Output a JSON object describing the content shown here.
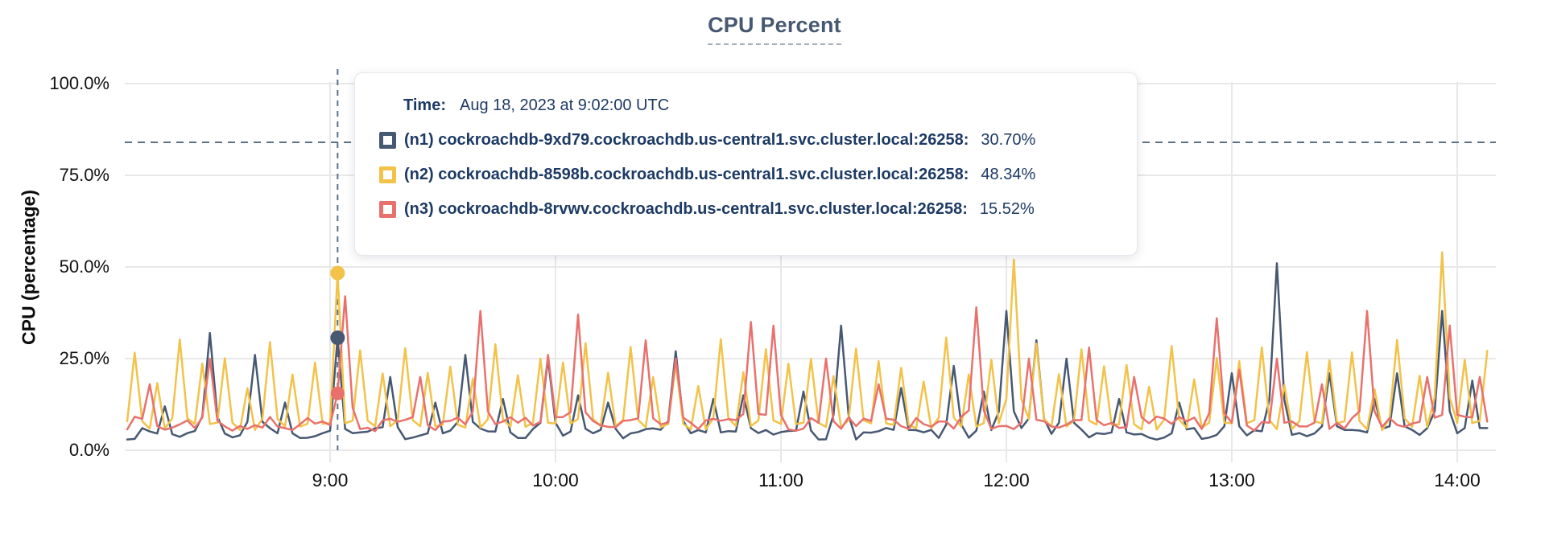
{
  "title": "CPU Percent",
  "y_axis": {
    "label": "CPU (percentage)",
    "ticks": [
      {
        "label": "100.0%",
        "value": 100
      },
      {
        "label": "75.0%",
        "value": 75
      },
      {
        "label": "50.0%",
        "value": 50
      },
      {
        "label": "25.0%",
        "value": 25
      },
      {
        "label": "0.0%",
        "value": 0
      }
    ]
  },
  "x_axis": {
    "ticks": [
      {
        "label": "9:00",
        "minute": 60
      },
      {
        "label": "10:00",
        "minute": 120
      },
      {
        "label": "11:00",
        "minute": 180
      },
      {
        "label": "12:00",
        "minute": 240
      },
      {
        "label": "13:00",
        "minute": 300
      },
      {
        "label": "14:00",
        "minute": 360
      }
    ]
  },
  "tooltip": {
    "time_label": "Time:",
    "time_value": "Aug 18, 2023 at 9:02:00 UTC",
    "rows": [
      {
        "label": "(n1) cockroachdb-9xd79.cockroachdb.us-central1.svc.cluster.local:26258:",
        "value": "30.70%",
        "color": "#475872"
      },
      {
        "label": "(n2) cockroachdb-8598b.cockroachdb.us-central1.svc.cluster.local:26258:",
        "value": "48.34%",
        "color": "#F2C249"
      },
      {
        "label": "(n3) cockroachdb-8rvwv.cockroachdb.us-central1.svc.cluster.local:26258:",
        "value": "15.52%",
        "color": "#E8716D"
      }
    ]
  },
  "chart_data": {
    "type": "line",
    "title": "CPU Percent",
    "xlabel": "",
    "ylabel": "CPU (percentage)",
    "ylim": [
      0,
      100
    ],
    "grid": true,
    "x_start_minute_from_8am": 6,
    "x_end_minute_from_8am": 368,
    "sample_step_minutes": 2,
    "x_tick_labels": [
      "9:00",
      "10:00",
      "11:00",
      "12:00",
      "13:00",
      "14:00"
    ],
    "threshold_percent": 84,
    "hover": {
      "minute": 62,
      "time": "Aug 18, 2023 at 9:02:00 UTC",
      "values": [
        30.7,
        48.34,
        15.52
      ]
    },
    "noise_seed": 7,
    "series": [
      {
        "id": "n1",
        "name": "cockroachdb-9xd79.cockroachdb.us-central1.svc.cluster.local:26258",
        "color": "#475872",
        "baseline": 4.5,
        "jitter": 1.6,
        "hover_value": 30.7,
        "spikes": [
          [
            16,
            12
          ],
          [
            28,
            32
          ],
          [
            40,
            26
          ],
          [
            48,
            13
          ],
          [
            76,
            20
          ],
          [
            88,
            13
          ],
          [
            96,
            26
          ],
          [
            106,
            14
          ],
          [
            118,
            25
          ],
          [
            126,
            15
          ],
          [
            134,
            13
          ],
          [
            152,
            27
          ],
          [
            162,
            14
          ],
          [
            170,
            15
          ],
          [
            186,
            16
          ],
          [
            196,
            34
          ],
          [
            212,
            17
          ],
          [
            226,
            23
          ],
          [
            234,
            16
          ],
          [
            240,
            38
          ],
          [
            248,
            30
          ],
          [
            256,
            25
          ],
          [
            270,
            14
          ],
          [
            286,
            13
          ],
          [
            300,
            21
          ],
          [
            312,
            51
          ],
          [
            326,
            21
          ],
          [
            338,
            14
          ],
          [
            344,
            21
          ],
          [
            356,
            38
          ],
          [
            364,
            19
          ]
        ],
        "exact": {
          "62": 30.7
        }
      },
      {
        "id": "n2",
        "name": "cockroachdb-8598b.cockroachdb.us-central1.svc.cluster.local:26258",
        "color": "#F2C249",
        "baseline": 4.6,
        "jitter": 1.4,
        "hover_value": 48.34,
        "spike_period": {
          "start": 8,
          "interval": 6,
          "heights": [
            27,
            19,
            29,
            22,
            25,
            18,
            30,
            21,
            26,
            23
          ]
        },
        "spikes": [
          [
            242,
            52
          ],
          [
            356,
            54
          ]
        ],
        "exact": {
          "62": 48.34
        }
      },
      {
        "id": "n3",
        "name": "cockroachdb-8rvwv.cockroachdb.us-central1.svc.cluster.local:26258",
        "color": "#E8716D",
        "baseline": 7.2,
        "jitter": 2.0,
        "hover_value": 15.52,
        "spikes": [
          [
            12,
            18
          ],
          [
            28,
            25
          ],
          [
            64,
            42
          ],
          [
            84,
            20
          ],
          [
            100,
            38
          ],
          [
            118,
            26
          ],
          [
            126,
            37
          ],
          [
            144,
            30
          ],
          [
            152,
            25
          ],
          [
            172,
            35
          ],
          [
            178,
            34
          ],
          [
            192,
            25
          ],
          [
            206,
            18
          ],
          [
            232,
            39
          ],
          [
            246,
            25
          ],
          [
            262,
            28
          ],
          [
            274,
            20
          ],
          [
            296,
            36
          ],
          [
            302,
            22
          ],
          [
            312,
            25
          ],
          [
            324,
            18
          ],
          [
            336,
            38
          ],
          [
            352,
            20
          ],
          [
            358,
            34
          ],
          [
            366,
            20
          ]
        ],
        "exact": {
          "62": 15.52
        }
      }
    ],
    "colors": {
      "grid": "#e8e8e8",
      "dashed_guides": "#5a7186",
      "axis_text": "#111111",
      "title": "#475872",
      "tooltip_text": "#1d3a64"
    }
  }
}
